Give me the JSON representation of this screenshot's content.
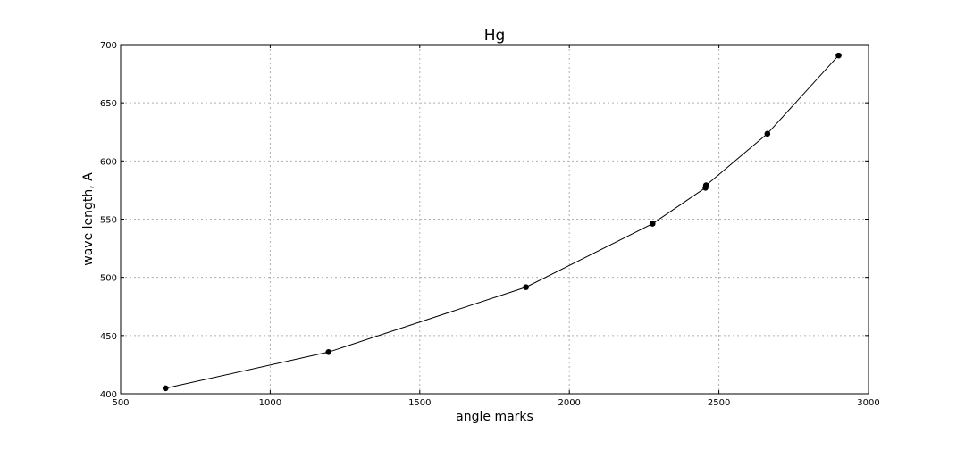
{
  "chart_data": {
    "type": "line",
    "title": "Hg",
    "xlabel": "angle marks",
    "ylabel": "wave length, A",
    "xlim": [
      500,
      3000
    ],
    "ylim": [
      400,
      700
    ],
    "xticks": [
      500,
      1000,
      1500,
      2000,
      2500,
      3000
    ],
    "yticks": [
      400,
      450,
      500,
      550,
      600,
      650,
      700
    ],
    "grid": true,
    "series": [
      {
        "color": "#000000",
        "marker": "circle",
        "x": [
          650,
          1195,
          1855,
          2278,
          2455,
          2457,
          2662,
          2900
        ],
        "y": [
          404.7,
          435.8,
          491.6,
          546.1,
          577.0,
          579.1,
          623.4,
          690.7
        ]
      }
    ]
  }
}
